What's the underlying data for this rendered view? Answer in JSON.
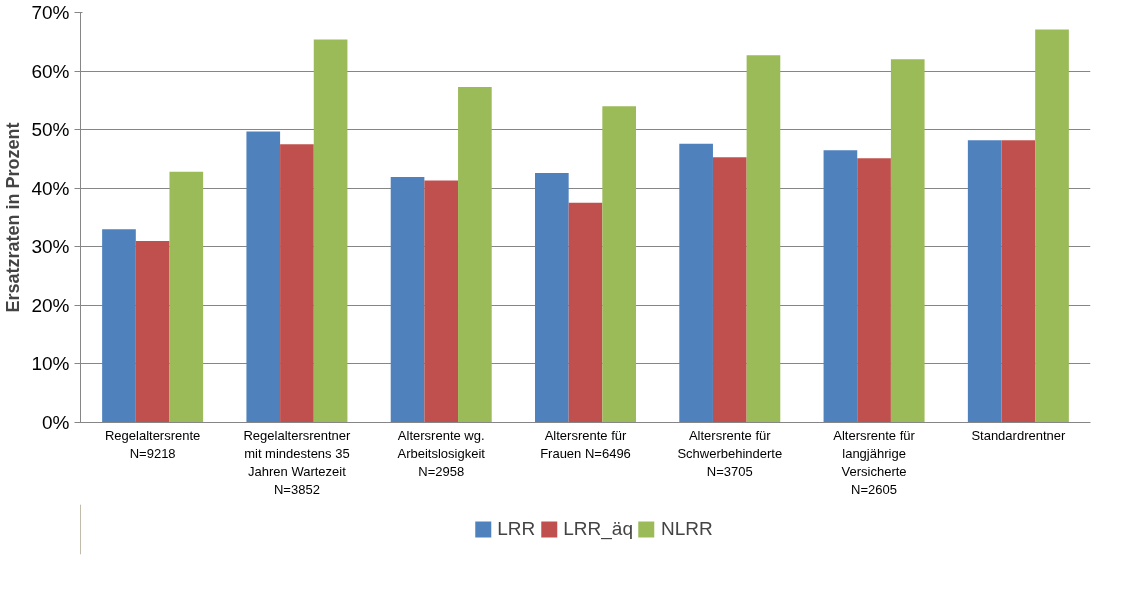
{
  "chart_data": {
    "type": "bar",
    "ylabel": "Ersatzraten in Prozent",
    "categories": [
      "Regelaltersrente\nN=9218",
      "Regelaltersrentner\nmit mindestens 35\nJahren Wartezeit\nN=3852",
      "Altersrente wg.\nArbeitslosigkeit\nN=2958",
      "Altersrente für\nFrauen N=6496",
      "Altersrente für\nSchwerbehinderte\nN=3705",
      "Altersrente für\nlangjährige\nVersicherte\nN=2605",
      "Standardrentner"
    ],
    "series": [
      {
        "name": "LRR",
        "color": "#4f81bd",
        "values": [
          33,
          49.7,
          41.9,
          42.6,
          47.6,
          46.5,
          48.2
        ]
      },
      {
        "name": "LRR_äq",
        "color": "#c0504d",
        "values": [
          31,
          47.5,
          41.3,
          37.5,
          45.3,
          45.1,
          48.2
        ]
      },
      {
        "name": "NLRR",
        "color": "#9bbb59",
        "values": [
          42.8,
          65.4,
          57.3,
          54,
          62.7,
          62,
          67.1
        ]
      }
    ],
    "ylim": [
      0,
      70
    ],
    "yticks": [
      {
        "value": 0,
        "label": "0%"
      },
      {
        "value": 10,
        "label": "10%"
      },
      {
        "value": 20,
        "label": "20%"
      },
      {
        "value": 30,
        "label": "30%"
      },
      {
        "value": 40,
        "label": "40%"
      },
      {
        "value": 50,
        "label": "50%"
      },
      {
        "value": 60,
        "label": "60%"
      },
      {
        "value": 70,
        "label": "70%"
      }
    ],
    "grid": "y",
    "legend": "bottom"
  }
}
